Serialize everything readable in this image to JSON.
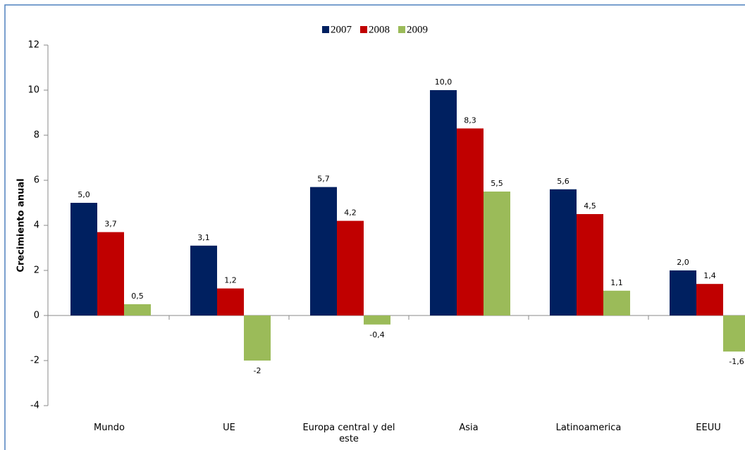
{
  "chart_data": {
    "type": "bar",
    "y_label": "Crecimiento anual",
    "categories": [
      "Mundo",
      "UE",
      "Europa central y del este",
      "Asia",
      "Latinoamerica",
      "EEUU"
    ],
    "series": [
      {
        "name": "2007",
        "color": "#002060",
        "values": [
          5.0,
          3.1,
          5.7,
          10.0,
          5.6,
          2.0
        ],
        "value_labels": [
          "5,0",
          "3,1",
          "5,7",
          "10,0",
          "5,6",
          "2,0"
        ]
      },
      {
        "name": "2008",
        "color": "#c00000",
        "values": [
          3.7,
          1.2,
          4.2,
          8.3,
          4.5,
          1.4
        ],
        "value_labels": [
          "3,7",
          "1,2",
          "4,2",
          "8,3",
          "4,5",
          "1,4"
        ]
      },
      {
        "name": "2009",
        "color": "#9bbb59",
        "values": [
          0.5,
          -2,
          -0.4,
          5.5,
          1.1,
          -1.6
        ],
        "value_labels": [
          "0,5",
          "-2",
          "-0,4",
          "5,5",
          "1,1",
          "-1,6"
        ]
      }
    ],
    "ylim": [
      -4,
      12
    ],
    "yticks": [
      -4,
      -2,
      0,
      2,
      4,
      6,
      8,
      10,
      12
    ],
    "legend": "top"
  }
}
